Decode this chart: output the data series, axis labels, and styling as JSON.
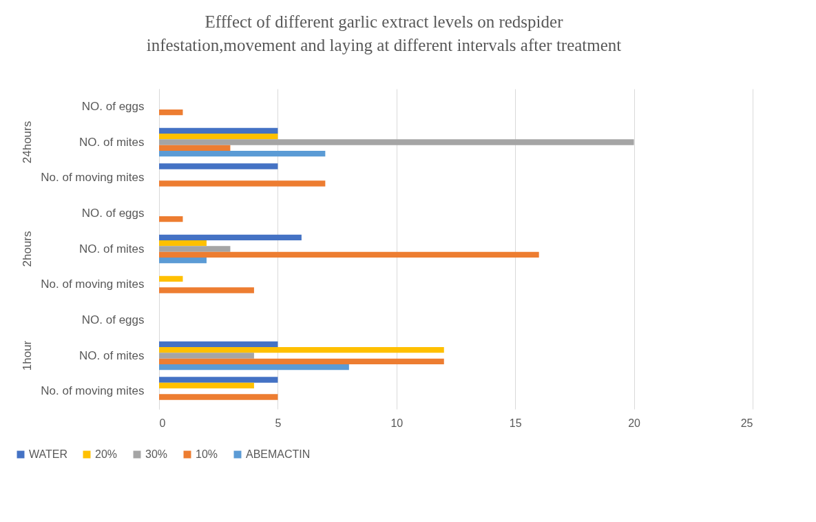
{
  "chart_data": {
    "type": "bar",
    "orientation": "horizontal",
    "title": "Efffect of different garlic extract levels on redspider infestation,movement and laying at different intervals after treatment",
    "categories": [
      "NO. of eggs",
      "NO. of mites",
      "No. of moving mites",
      "NO. of eggs",
      "NO. of mites",
      "No. of moving mites",
      "NO. of eggs",
      "NO. of mites",
      "No. of moving mites"
    ],
    "annotations": [
      "24hours",
      "2hours",
      "1hour"
    ],
    "series": [
      {
        "name": "WATER",
        "color": "#4472c4",
        "values": [
          null,
          5,
          5,
          null,
          6,
          null,
          null,
          5,
          5
        ]
      },
      {
        "name": "20%",
        "color": "#ffc000",
        "values": [
          null,
          5,
          null,
          null,
          2,
          1,
          null,
          12,
          4
        ]
      },
      {
        "name": "30%",
        "color": "#a5a5a5",
        "values": [
          null,
          20,
          null,
          null,
          3,
          null,
          null,
          4,
          null
        ]
      },
      {
        "name": "10%",
        "color": "#ed7d31",
        "values": [
          1,
          3,
          7,
          1,
          16,
          4,
          null,
          12,
          5
        ]
      },
      {
        "name": "ABEMACTIN",
        "color": "#5b9bd5",
        "values": [
          null,
          7,
          null,
          null,
          2,
          null,
          null,
          8,
          null
        ]
      }
    ],
    "xlim": [
      0,
      25
    ],
    "xticks": [
      0,
      5,
      10,
      15,
      20,
      25
    ],
    "grid": "x",
    "legend": "bottom"
  }
}
